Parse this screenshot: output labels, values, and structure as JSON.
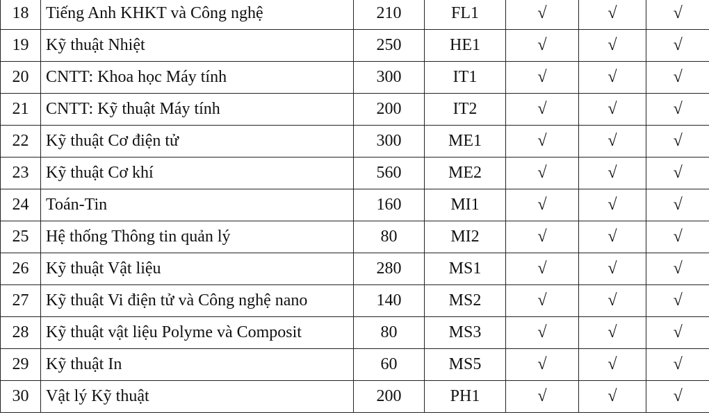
{
  "table": {
    "rows": [
      [
        "18",
        "Tiếng Anh KHKT và Công nghệ",
        "210",
        "FL1",
        "√",
        "√",
        "√"
      ],
      [
        "19",
        "Kỹ thuật Nhiệt",
        "250",
        "HE1",
        "√",
        "√",
        "√"
      ],
      [
        "20",
        "CNTT: Khoa học Máy tính",
        "300",
        "IT1",
        "√",
        "√",
        "√"
      ],
      [
        "21",
        "CNTT: Kỹ thuật Máy tính",
        "200",
        "IT2",
        "√",
        "√",
        "√"
      ],
      [
        "22",
        "Kỹ thuật Cơ điện tử",
        "300",
        "ME1",
        "√",
        "√",
        "√"
      ],
      [
        "23",
        "Kỹ thuật Cơ khí",
        "560",
        "ME2",
        "√",
        "√",
        "√"
      ],
      [
        "24",
        "Toán-Tin",
        "160",
        "MI1",
        "√",
        "√",
        "√"
      ],
      [
        "25",
        "Hệ thống Thông tin quản lý",
        "80",
        "MI2",
        "√",
        "√",
        "√"
      ],
      [
        "26",
        "Kỹ thuật Vật liệu",
        "280",
        "MS1",
        "√",
        "√",
        "√"
      ],
      [
        "27",
        "Kỹ thuật Vi điện tử và Công nghệ nano",
        "140",
        "MS2",
        "√",
        "√",
        "√"
      ],
      [
        "28",
        "Kỹ thuật vật liệu Polyme và Composit",
        "80",
        "MS3",
        "√",
        "√",
        "√"
      ],
      [
        "29",
        "Kỹ thuật In",
        "60",
        "MS5",
        "√",
        "√",
        "√"
      ],
      [
        "30",
        "Vật lý Kỹ thuật",
        "200",
        "PH1",
        "√",
        "√",
        "√"
      ]
    ]
  }
}
